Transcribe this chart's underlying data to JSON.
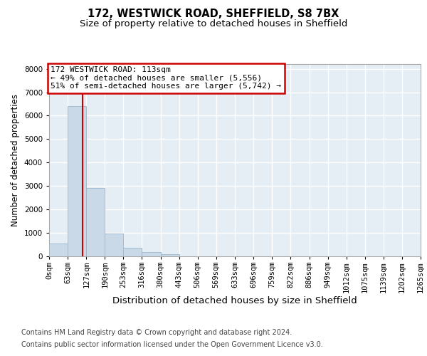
{
  "title": "172, WESTWICK ROAD, SHEFFIELD, S8 7BX",
  "subtitle": "Size of property relative to detached houses in Sheffield",
  "xlabel": "Distribution of detached houses by size in Sheffield",
  "ylabel": "Number of detached properties",
  "bar_values": [
    550,
    6400,
    2920,
    980,
    350,
    175,
    100,
    0,
    0,
    0,
    0,
    0,
    0,
    0,
    0,
    0,
    0,
    0,
    0,
    0
  ],
  "bin_edges": [
    0,
    63,
    127,
    190,
    253,
    316,
    380,
    443,
    506,
    569,
    633,
    696,
    759,
    822,
    886,
    949,
    1012,
    1075,
    1139,
    1202,
    1265
  ],
  "x_labels": [
    "0sqm",
    "63sqm",
    "127sqm",
    "190sqm",
    "253sqm",
    "316sqm",
    "380sqm",
    "443sqm",
    "506sqm",
    "569sqm",
    "633sqm",
    "696sqm",
    "759sqm",
    "822sqm",
    "886sqm",
    "949sqm",
    "1012sqm",
    "1075sqm",
    "1139sqm",
    "1202sqm",
    "1265sqm"
  ],
  "bar_color": "#c9d9e8",
  "bar_edgecolor": "#9ab5cc",
  "vline_x": 113,
  "vline_color": "#cc0000",
  "annotation_line1": "172 WESTWICK ROAD: 113sqm",
  "annotation_line2": "← 49% of detached houses are smaller (5,556)",
  "annotation_line3": "51% of semi-detached houses are larger (5,742) →",
  "annotation_box_edgecolor": "#cc0000",
  "ylim_max": 8200,
  "yticks": [
    0,
    1000,
    2000,
    3000,
    4000,
    5000,
    6000,
    7000,
    8000
  ],
  "plot_bg_color": "#e6eef5",
  "grid_color": "#ffffff",
  "footer_line1": "Contains HM Land Registry data © Crown copyright and database right 2024.",
  "footer_line2": "Contains public sector information licensed under the Open Government Licence v3.0.",
  "title_fontsize": 10.5,
  "subtitle_fontsize": 9.5,
  "tick_fontsize": 7.5,
  "ylabel_fontsize": 8.5,
  "xlabel_fontsize": 9.5,
  "annotation_fontsize": 8,
  "footer_fontsize": 7
}
